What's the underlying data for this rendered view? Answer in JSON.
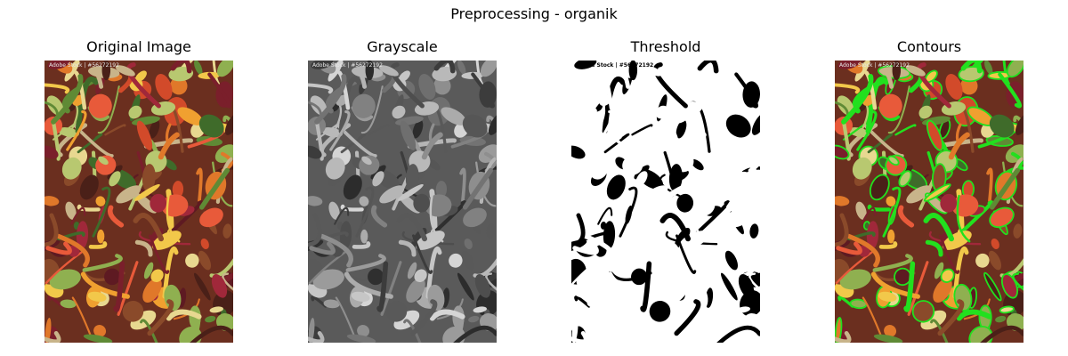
{
  "figure": {
    "title": "Preprocessing - organik"
  },
  "panels": [
    {
      "id": "original",
      "title": "Original Image",
      "watermark": "Adobe Stock | #56272192",
      "style": "color",
      "bg": "#6b2f1f"
    },
    {
      "id": "grayscale",
      "title": "Grayscale",
      "watermark": "Adobe Stock | #56272192",
      "style": "gray",
      "bg": "#5a5a5a"
    },
    {
      "id": "threshold",
      "title": "Threshold",
      "watermark": "Adobe Stock | #56272192",
      "style": "binary",
      "bg": "#ffffff"
    },
    {
      "id": "contours",
      "title": "Contours",
      "watermark": "Adobe Stock | #56272192",
      "style": "contours",
      "bg": "#6b2f1f"
    }
  ],
  "colors": {
    "contour": "#22e01e",
    "threshold_fg": "#000000",
    "threshold_bg": "#ffffff"
  }
}
